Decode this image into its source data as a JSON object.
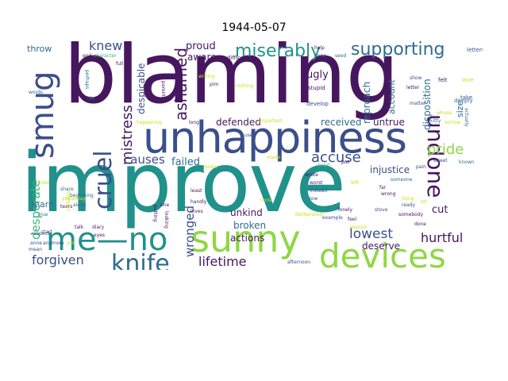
{
  "title": "1944-05-07",
  "colors": {
    "dark_purple": "#46175e",
    "indigo": "#3b4f8a",
    "blue": "#2f6c8e",
    "teal": "#21918c",
    "green": "#35b779",
    "lime": "#8fd744",
    "yellow": "#c9e020"
  },
  "words": [
    "blaming",
    "improve",
    "unhappiness",
    "sunny",
    "devices",
    "me—no",
    "smug",
    "knife",
    "cruel",
    "undone",
    "supporting",
    "miserably",
    "ashamed",
    "mistress",
    "accuse",
    "pride",
    "lowest",
    "hurtful",
    "forgiven",
    "lifetime",
    "wronged",
    "knew",
    "desperate",
    "causes",
    "failed",
    "proud",
    "aware",
    "despicable",
    "ugly",
    "defended",
    "received",
    "untrue",
    "injustice",
    "disposition",
    "reproach",
    "account",
    "cut",
    "deserve",
    "unkind",
    "broken",
    "actions",
    "throw",
    "learn",
    "size",
    "letters",
    "take",
    "love",
    "felt",
    "help",
    "difficult",
    "gone",
    "seed",
    "end",
    "character",
    "full",
    "life",
    "words",
    "perhaps",
    "parents",
    "writing",
    "pim",
    "stupid",
    "develop",
    "letter",
    "matter",
    "deeply",
    "kitty",
    "sorrow",
    "actually",
    "known",
    "pain",
    "street",
    "someone",
    "put",
    "great",
    "worst",
    "instead",
    "low",
    "left",
    "wrong",
    "ready",
    "thing",
    "lot",
    "lonely",
    "example",
    "feel",
    "anyone",
    "stove",
    "somebody",
    "done",
    "far",
    "yesterday",
    "respect",
    "talk",
    "diary",
    "eyes",
    "anne",
    "anymore",
    "yet",
    "share",
    "beginning",
    "tears",
    "alone",
    "mean",
    "start",
    "true",
    "least",
    "handly",
    "loves",
    "looking",
    "putting",
    "books",
    "whose",
    "wrote",
    "made",
    "none",
    "long",
    "important",
    "nothing",
    "used",
    "afternoon",
    "deliberately",
    "certainly",
    "happening",
    "tried",
    "one",
    "show"
  ]
}
